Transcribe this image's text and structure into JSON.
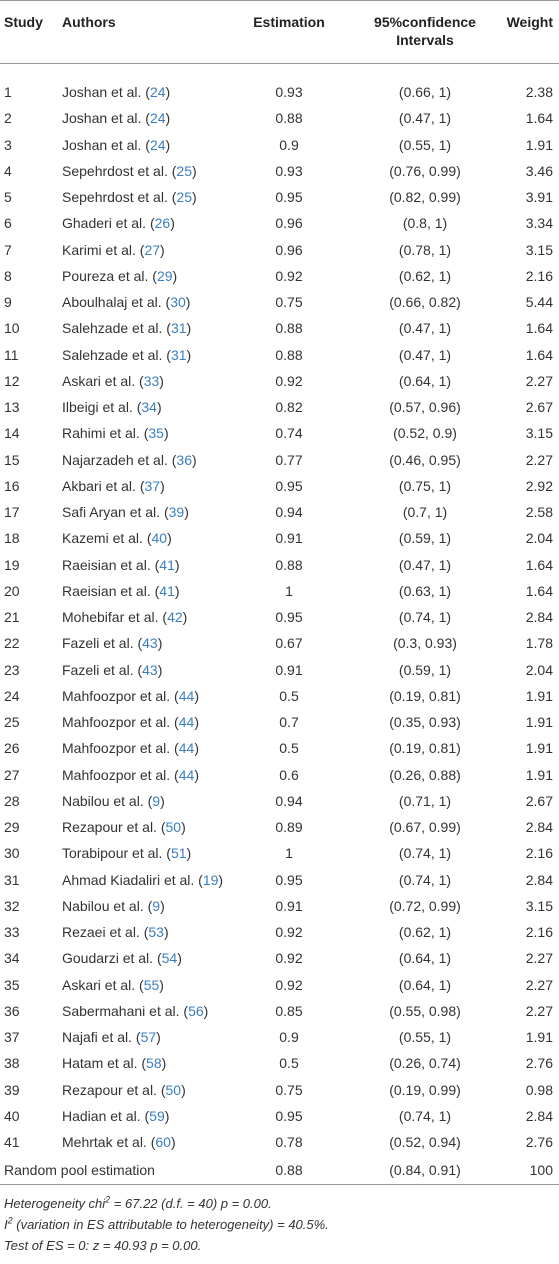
{
  "table": {
    "header": [
      "Study",
      "Authors",
      "Estimation",
      "95%confidence Intervals",
      "Weight"
    ],
    "rows": [
      [
        "1",
        "Joshan et al. (24)",
        "0.93",
        "(0.66, 1)",
        "2.38"
      ],
      [
        "2",
        "Joshan et al. (24)",
        "0.88",
        "(0.47, 1)",
        "1.64"
      ],
      [
        "3",
        "Joshan et al. (24)",
        "0.9",
        "(0.55, 1)",
        "1.91"
      ],
      [
        "4",
        "Sepehrdost et al. (25)",
        "0.93",
        "(0.76, 0.99)",
        "3.46"
      ],
      [
        "5",
        "Sepehrdost et al. (25)",
        "0.95",
        "(0.82, 0.99)",
        "3.91"
      ],
      [
        "6",
        "Ghaderi et al. (26)",
        "0.96",
        "(0.8, 1)",
        "3.34"
      ],
      [
        "7",
        "Karimi et al. (27)",
        "0.96",
        "(0.78, 1)",
        "3.15"
      ],
      [
        "8",
        "Poureza et al. (29)",
        "0.92",
        "(0.62, 1)",
        "2.16"
      ],
      [
        "9",
        "Aboulhalaj et al. (30)",
        "0.75",
        "(0.66, 0.82)",
        "5.44"
      ],
      [
        "10",
        "Salehzade et al. (31)",
        "0.88",
        "(0.47, 1)",
        "1.64"
      ],
      [
        "11",
        "Salehzade et al. (31)",
        "0.88",
        "(0.47, 1)",
        "1.64"
      ],
      [
        "12",
        "Askari et al. (33)",
        "0.92",
        "(0.64, 1)",
        "2.27"
      ],
      [
        "13",
        "Ilbeigi et al. (34)",
        "0.82",
        "(0.57, 0.96)",
        "2.67"
      ],
      [
        "14",
        "Rahimi et al. (35)",
        "0.74",
        "(0.52, 0.9)",
        "3.15"
      ],
      [
        "15",
        "Najarzadeh et al. (36)",
        "0.77",
        "(0.46, 0.95)",
        "2.27"
      ],
      [
        "16",
        "Akbari et al. (37)",
        "0.95",
        "(0.75, 1)",
        "2.92"
      ],
      [
        "17",
        "Safi Aryan et al. (39)",
        "0.94",
        "(0.7, 1)",
        "2.58"
      ],
      [
        "18",
        "Kazemi et al. (40)",
        "0.91",
        "(0.59, 1)",
        "2.04"
      ],
      [
        "19",
        "Raeisian et al. (41)",
        "0.88",
        "(0.47, 1)",
        "1.64"
      ],
      [
        "20",
        "Raeisian et al. (41)",
        "1",
        "(0.63, 1)",
        "1.64"
      ],
      [
        "21",
        "Mohebifar et al. (42)",
        "0.95",
        "(0.74, 1)",
        "2.84"
      ],
      [
        "22",
        "Fazeli et al. (43)",
        "0.67",
        "(0.3, 0.93)",
        "1.78"
      ],
      [
        "23",
        "Fazeli et al. (43)",
        "0.91",
        "(0.59, 1)",
        "2.04"
      ],
      [
        "24",
        "Mahfoozpor et al. (44)",
        "0.5",
        "(0.19, 0.81)",
        "1.91"
      ],
      [
        "25",
        "Mahfoozpor et al. (44)",
        "0.7",
        "(0.35, 0.93)",
        "1.91"
      ],
      [
        "26",
        "Mahfoozpor et al. (44)",
        "0.5",
        "(0.19, 0.81)",
        "1.91"
      ],
      [
        "27",
        "Mahfoozpor et al. (44)",
        "0.6",
        "(0.26, 0.88)",
        "1.91"
      ],
      [
        "28",
        "Nabilou et al. (9)",
        "0.94",
        "(0.71, 1)",
        "2.67"
      ],
      [
        "29",
        "Rezapour et al. (50)",
        "0.89",
        "(0.67, 0.99)",
        "2.84"
      ],
      [
        "30",
        "Torabipour et al. (51)",
        "1",
        "(0.74, 1)",
        "2.16"
      ],
      [
        "31",
        "Ahmad Kiadaliri et al. (19)",
        "0.95",
        "(0.74, 1)",
        "2.84"
      ],
      [
        "32",
        "Nabilou et al. (9)",
        "0.91",
        "(0.72, 0.99)",
        "3.15"
      ],
      [
        "33",
        "Rezaei et al. (53)",
        "0.92",
        "(0.62, 1)",
        "2.16"
      ],
      [
        "34",
        "Goudarzi et al. (54)",
        "0.92",
        "(0.64, 1)",
        "2.27"
      ],
      [
        "35",
        "Askari et al. (55)",
        "0.92",
        "(0.64, 1)",
        "2.27"
      ],
      [
        "36",
        "Sabermahani et al. (56)",
        "0.85",
        "(0.55, 0.98)",
        "2.27"
      ],
      [
        "37",
        "Najafi et al. (57)",
        "0.9",
        "(0.55, 1)",
        "1.91"
      ],
      [
        "38",
        "Hatam et al. (58)",
        "0.5",
        "(0.26, 0.74)",
        "2.76"
      ],
      [
        "39",
        "Rezapour et al. (50)",
        "0.75",
        "(0.19, 0.99)",
        "0.98"
      ],
      [
        "40",
        "Hadian et al. (59)",
        "0.95",
        "(0.74, 1)",
        "2.84"
      ],
      [
        "41",
        "Mehrtak et al. (60)",
        "0.78",
        "(0.52, 0.94)",
        "2.76"
      ]
    ],
    "summary": {
      "label": "Random pool estimation",
      "estimation": "0.88",
      "ci": "(0.84, 0.91)",
      "weight": "100"
    }
  },
  "footnotes": [
    {
      "text": "Heterogeneity chi",
      "sup": "2",
      "rest": " = 67.22 (d.f. = 40) p = 0.00."
    },
    {
      "text": "I",
      "sup": "2",
      "rest": " (variation in ES attributable to heterogeneity) = 40.5%."
    },
    {
      "text": "Test of ES = 0: z = 40.93 p = 0.00."
    }
  ]
}
